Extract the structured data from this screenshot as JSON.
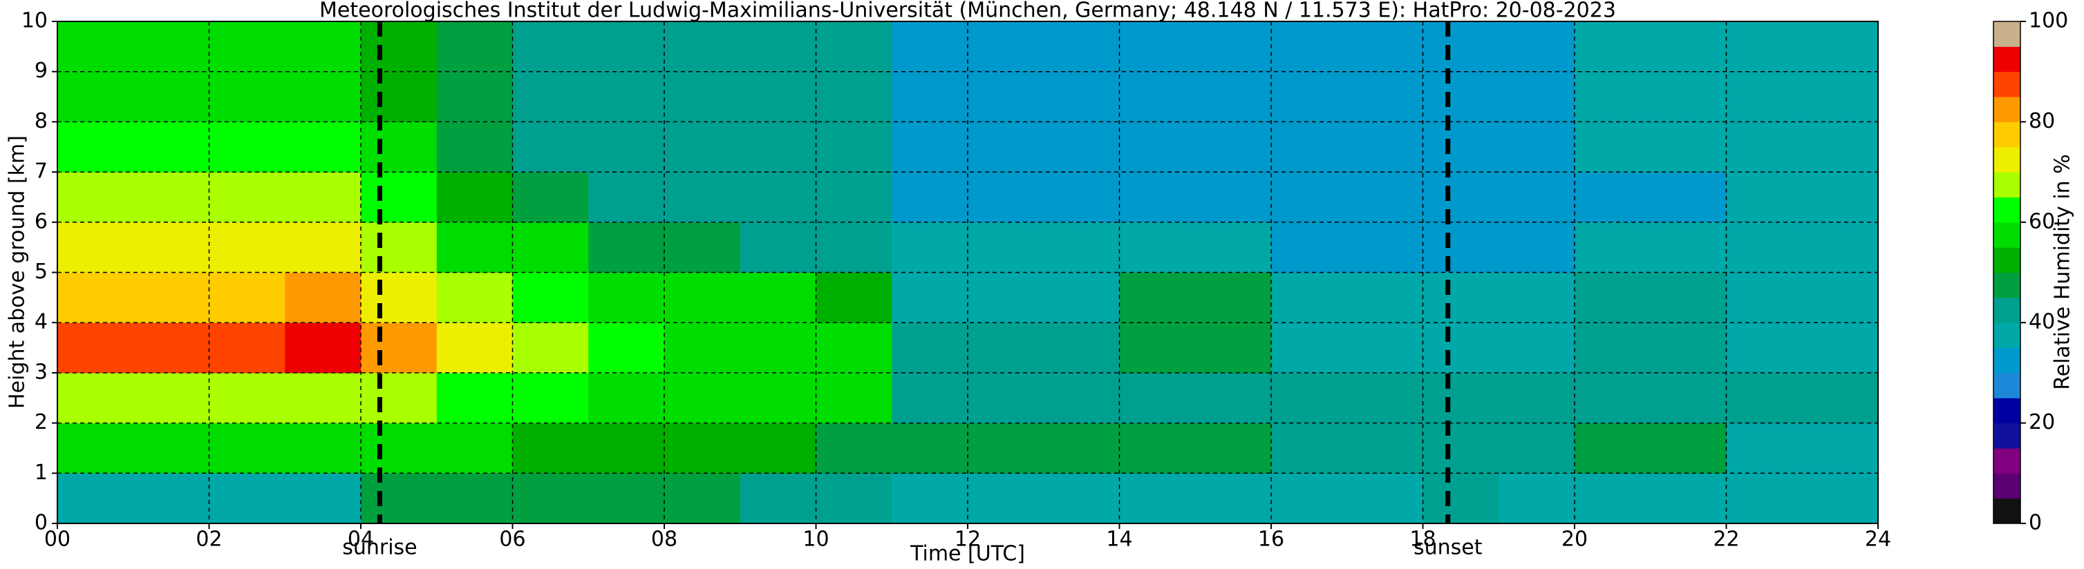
{
  "chart_data": {
    "type": "heatmap",
    "title": "Meteorologisches Institut der Ludwig-Maximilians-Universität (München, Germany; 48.148 N / 11.573 E):    HatPro: 20-08-2023",
    "xlabel": "Time [UTC]",
    "ylabel": "Height above ground [km]",
    "xlim": [
      0,
      24
    ],
    "ylim": [
      0,
      10
    ],
    "xticks": [
      {
        "value": 0,
        "label": "00"
      },
      {
        "value": 2,
        "label": "02"
      },
      {
        "value": 4,
        "label": "04"
      },
      {
        "value": 6,
        "label": "06"
      },
      {
        "value": 8,
        "label": "08"
      },
      10,
      12,
      14,
      16,
      18,
      20,
      22,
      24
    ],
    "yticks": [
      0,
      1,
      2,
      3,
      4,
      5,
      6,
      7,
      8,
      9,
      10
    ],
    "grid": true,
    "xbins": [
      0,
      1,
      2,
      3,
      4,
      5,
      6,
      7,
      8,
      9,
      10,
      11,
      12,
      13,
      14,
      15,
      16,
      17,
      18,
      19,
      20,
      21,
      22,
      23,
      24
    ],
    "ybins": [
      0,
      1,
      2,
      3,
      4,
      5,
      6,
      7,
      8,
      9,
      10
    ],
    "z": [
      [
        38,
        55,
        65,
        88,
        78,
        73,
        68,
        60,
        57,
        57
      ],
      [
        38,
        55,
        65,
        86,
        78,
        73,
        68,
        60,
        57,
        57
      ],
      [
        38,
        55,
        65,
        86,
        78,
        73,
        68,
        60,
        57,
        57
      ],
      [
        38,
        55,
        66,
        90,
        80,
        74,
        68,
        60,
        57,
        57
      ],
      [
        45,
        55,
        68,
        80,
        72,
        68,
        62,
        55,
        52,
        52
      ],
      [
        48,
        55,
        62,
        70,
        65,
        58,
        52,
        48,
        48,
        48
      ],
      [
        48,
        53,
        60,
        68,
        62,
        55,
        48,
        44,
        44,
        44
      ],
      [
        48,
        52,
        58,
        60,
        55,
        48,
        42,
        40,
        40,
        40
      ],
      [
        45,
        52,
        58,
        58,
        55,
        46,
        40,
        40,
        40,
        40
      ],
      [
        42,
        52,
        58,
        58,
        55,
        40,
        40,
        40,
        40,
        40
      ],
      [
        40,
        48,
        55,
        56,
        50,
        40,
        40,
        40,
        40,
        40
      ],
      [
        37,
        45,
        43,
        40,
        38,
        35,
        30,
        32,
        34,
        34
      ],
      [
        37,
        45,
        43,
        42,
        38,
        35,
        30,
        32,
        34,
        34
      ],
      [
        37,
        45,
        43,
        40,
        38,
        35,
        30,
        32,
        34,
        34
      ],
      [
        37,
        45,
        42,
        48,
        46,
        35,
        32,
        32,
        33,
        33
      ],
      [
        37,
        45,
        42,
        48,
        46,
        35,
        32,
        32,
        33,
        33
      ],
      [
        37,
        42,
        40,
        38,
        38,
        34,
        30,
        32,
        33,
        33
      ],
      [
        37,
        42,
        40,
        38,
        38,
        34,
        30,
        32,
        33,
        33
      ],
      [
        42,
        40,
        40,
        38,
        36,
        34,
        30,
        32,
        33,
        33
      ],
      [
        37,
        40,
        40,
        37,
        35,
        33,
        32,
        33,
        34,
        34
      ],
      [
        37,
        45,
        44,
        44,
        40,
        36,
        34,
        35,
        36,
        36
      ],
      [
        37,
        45,
        44,
        44,
        40,
        36,
        34,
        35,
        36,
        36
      ],
      [
        35,
        38,
        44,
        38,
        36,
        35,
        35,
        36,
        37,
        37
      ],
      [
        35,
        38,
        44,
        38,
        36,
        35,
        35,
        36,
        37,
        37
      ]
    ],
    "annotations": [
      {
        "x": 4.25,
        "label": "sunrise"
      },
      {
        "x": 18.33,
        "label": "sunset"
      }
    ],
    "colorbar": {
      "label": "Relative Humidity in %",
      "levels": [
        0,
        5,
        10,
        15,
        20,
        25,
        30,
        35,
        40,
        45,
        50,
        55,
        60,
        65,
        70,
        75,
        80,
        85,
        90,
        95,
        100
      ],
      "colors": [
        "#111111",
        "#5a0070",
        "#800080",
        "#10109a",
        "#0000a0",
        "#1e88d8",
        "#0099cc",
        "#00a8a8",
        "#00a090",
        "#00a040",
        "#00b000",
        "#00dd00",
        "#00ff00",
        "#aaff00",
        "#eeee00",
        "#ffcc00",
        "#ff9900",
        "#ff4400",
        "#ee0000",
        "#c8b08a"
      ],
      "ticks": [
        0,
        20,
        40,
        60,
        80,
        100
      ]
    }
  }
}
